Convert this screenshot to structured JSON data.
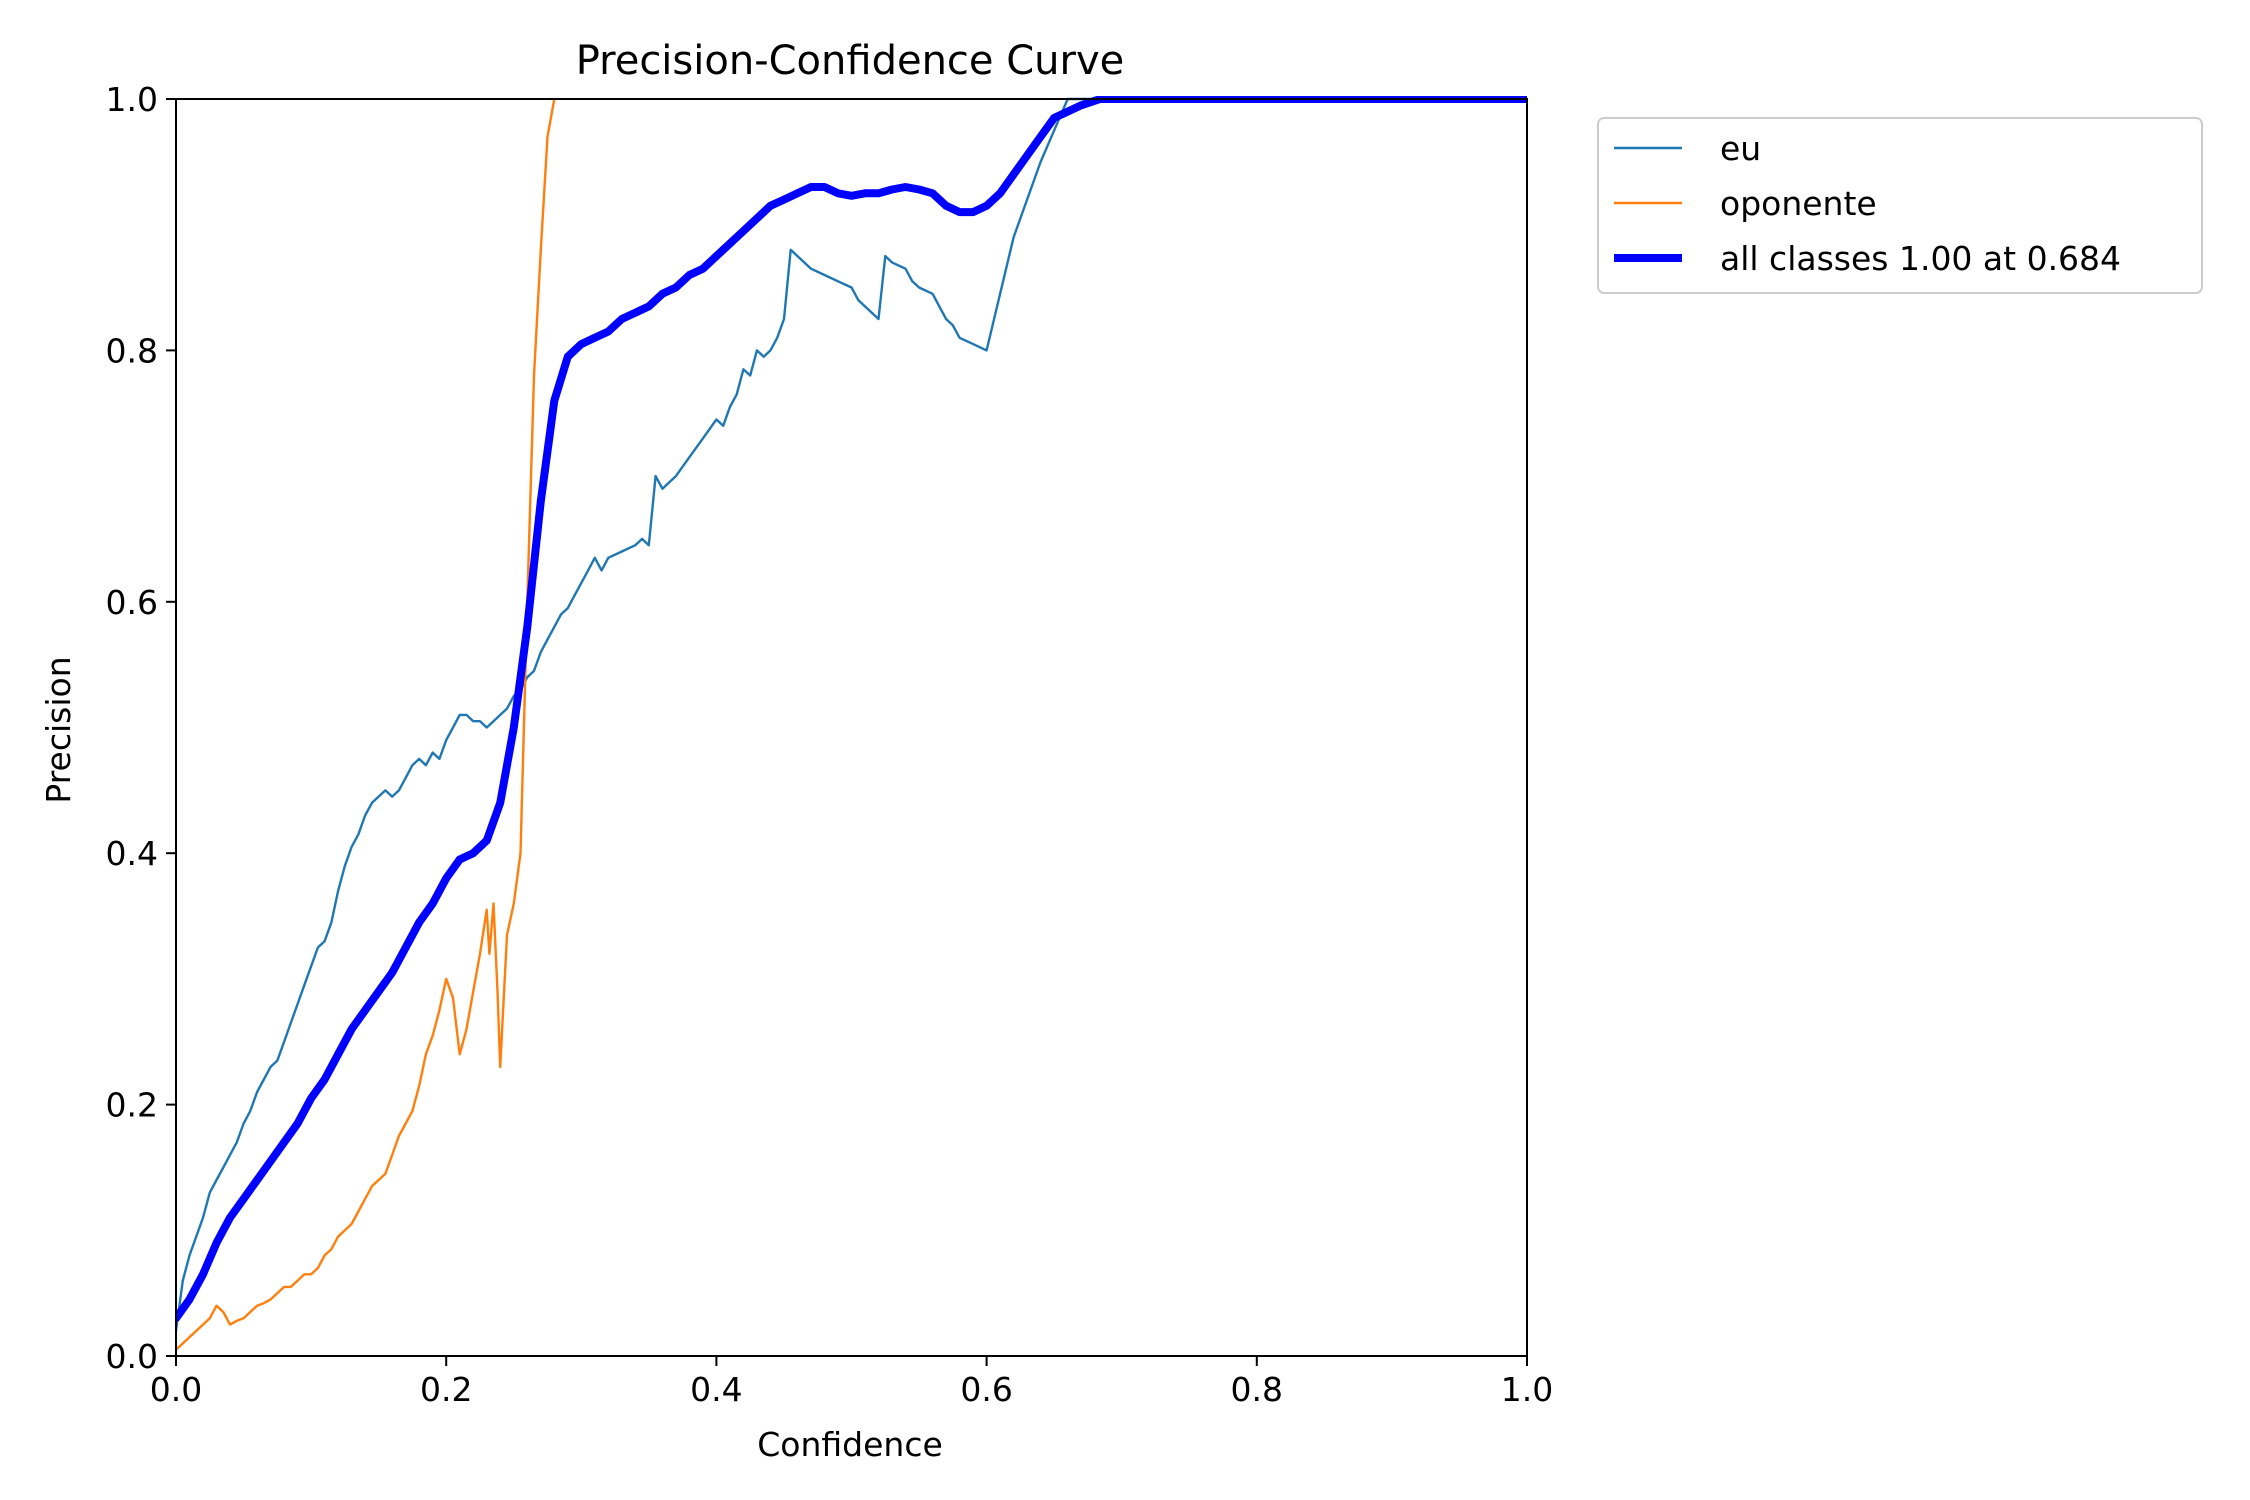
{
  "chart_data": {
    "type": "line",
    "title": "Precision-Confidence Curve",
    "xlabel": "Confidence",
    "ylabel": "Precision",
    "xlim": [
      0,
      1
    ],
    "ylim": [
      0,
      1
    ],
    "x_ticks": [
      "0.0",
      "0.2",
      "0.4",
      "0.6",
      "0.8",
      "1.0"
    ],
    "y_ticks": [
      "0.0",
      "0.2",
      "0.4",
      "0.6",
      "0.8",
      "1.0"
    ],
    "grid": false,
    "legend_position": "outside-top-right",
    "series": [
      {
        "name": "eu",
        "color": "#1f77b4",
        "style": "thin",
        "points": [
          [
            0.0,
            0.02
          ],
          [
            0.005,
            0.06
          ],
          [
            0.01,
            0.08
          ],
          [
            0.02,
            0.11
          ],
          [
            0.025,
            0.13
          ],
          [
            0.03,
            0.14
          ],
          [
            0.035,
            0.15
          ],
          [
            0.04,
            0.16
          ],
          [
            0.045,
            0.17
          ],
          [
            0.05,
            0.185
          ],
          [
            0.055,
            0.195
          ],
          [
            0.06,
            0.21
          ],
          [
            0.065,
            0.22
          ],
          [
            0.07,
            0.23
          ],
          [
            0.075,
            0.235
          ],
          [
            0.08,
            0.25
          ],
          [
            0.085,
            0.265
          ],
          [
            0.09,
            0.28
          ],
          [
            0.095,
            0.295
          ],
          [
            0.1,
            0.31
          ],
          [
            0.105,
            0.325
          ],
          [
            0.11,
            0.33
          ],
          [
            0.115,
            0.345
          ],
          [
            0.12,
            0.37
          ],
          [
            0.125,
            0.39
          ],
          [
            0.13,
            0.405
          ],
          [
            0.135,
            0.415
          ],
          [
            0.14,
            0.43
          ],
          [
            0.145,
            0.44
          ],
          [
            0.15,
            0.445
          ],
          [
            0.155,
            0.45
          ],
          [
            0.16,
            0.445
          ],
          [
            0.165,
            0.45
          ],
          [
            0.17,
            0.46
          ],
          [
            0.175,
            0.47
          ],
          [
            0.18,
            0.475
          ],
          [
            0.185,
            0.47
          ],
          [
            0.19,
            0.48
          ],
          [
            0.195,
            0.475
          ],
          [
            0.2,
            0.49
          ],
          [
            0.205,
            0.5
          ],
          [
            0.21,
            0.51
          ],
          [
            0.215,
            0.51
          ],
          [
            0.22,
            0.505
          ],
          [
            0.225,
            0.505
          ],
          [
            0.23,
            0.5
          ],
          [
            0.235,
            0.505
          ],
          [
            0.24,
            0.51
          ],
          [
            0.245,
            0.515
          ],
          [
            0.25,
            0.525
          ],
          [
            0.255,
            0.53
          ],
          [
            0.26,
            0.54
          ],
          [
            0.265,
            0.545
          ],
          [
            0.27,
            0.56
          ],
          [
            0.275,
            0.57
          ],
          [
            0.28,
            0.58
          ],
          [
            0.285,
            0.59
          ],
          [
            0.29,
            0.595
          ],
          [
            0.295,
            0.605
          ],
          [
            0.3,
            0.615
          ],
          [
            0.305,
            0.625
          ],
          [
            0.31,
            0.635
          ],
          [
            0.315,
            0.625
          ],
          [
            0.32,
            0.635
          ],
          [
            0.33,
            0.64
          ],
          [
            0.34,
            0.645
          ],
          [
            0.345,
            0.65
          ],
          [
            0.35,
            0.645
          ],
          [
            0.355,
            0.7
          ],
          [
            0.36,
            0.69
          ],
          [
            0.37,
            0.7
          ],
          [
            0.38,
            0.715
          ],
          [
            0.39,
            0.73
          ],
          [
            0.4,
            0.745
          ],
          [
            0.405,
            0.74
          ],
          [
            0.41,
            0.755
          ],
          [
            0.415,
            0.765
          ],
          [
            0.42,
            0.785
          ],
          [
            0.425,
            0.78
          ],
          [
            0.43,
            0.8
          ],
          [
            0.435,
            0.795
          ],
          [
            0.44,
            0.8
          ],
          [
            0.445,
            0.81
          ],
          [
            0.45,
            0.825
          ],
          [
            0.455,
            0.88
          ],
          [
            0.46,
            0.875
          ],
          [
            0.465,
            0.87
          ],
          [
            0.47,
            0.865
          ],
          [
            0.48,
            0.86
          ],
          [
            0.49,
            0.855
          ],
          [
            0.5,
            0.85
          ],
          [
            0.505,
            0.84
          ],
          [
            0.51,
            0.835
          ],
          [
            0.52,
            0.825
          ],
          [
            0.525,
            0.875
          ],
          [
            0.53,
            0.87
          ],
          [
            0.54,
            0.865
          ],
          [
            0.545,
            0.855
          ],
          [
            0.55,
            0.85
          ],
          [
            0.56,
            0.845
          ],
          [
            0.565,
            0.835
          ],
          [
            0.57,
            0.825
          ],
          [
            0.575,
            0.82
          ],
          [
            0.58,
            0.81
          ],
          [
            0.59,
            0.805
          ],
          [
            0.6,
            0.8
          ],
          [
            0.62,
            0.89
          ],
          [
            0.64,
            0.95
          ],
          [
            0.66,
            1.0
          ],
          [
            0.68,
            1.0
          ],
          [
            1.0,
            1.0
          ]
        ]
      },
      {
        "name": "oponente",
        "color": "#ff7f0e",
        "style": "thin",
        "points": [
          [
            0.0,
            0.005
          ],
          [
            0.005,
            0.01
          ],
          [
            0.01,
            0.015
          ],
          [
            0.015,
            0.02
          ],
          [
            0.02,
            0.025
          ],
          [
            0.025,
            0.03
          ],
          [
            0.03,
            0.04
          ],
          [
            0.035,
            0.035
          ],
          [
            0.04,
            0.025
          ],
          [
            0.045,
            0.028
          ],
          [
            0.05,
            0.03
          ],
          [
            0.055,
            0.035
          ],
          [
            0.06,
            0.04
          ],
          [
            0.065,
            0.042
          ],
          [
            0.07,
            0.045
          ],
          [
            0.075,
            0.05
          ],
          [
            0.08,
            0.055
          ],
          [
            0.085,
            0.055
          ],
          [
            0.09,
            0.06
          ],
          [
            0.095,
            0.065
          ],
          [
            0.1,
            0.065
          ],
          [
            0.105,
            0.07
          ],
          [
            0.11,
            0.08
          ],
          [
            0.115,
            0.085
          ],
          [
            0.12,
            0.095
          ],
          [
            0.125,
            0.1
          ],
          [
            0.13,
            0.105
          ],
          [
            0.135,
            0.115
          ],
          [
            0.14,
            0.125
          ],
          [
            0.145,
            0.135
          ],
          [
            0.15,
            0.14
          ],
          [
            0.155,
            0.145
          ],
          [
            0.16,
            0.16
          ],
          [
            0.165,
            0.175
          ],
          [
            0.17,
            0.185
          ],
          [
            0.175,
            0.195
          ],
          [
            0.18,
            0.215
          ],
          [
            0.185,
            0.24
          ],
          [
            0.19,
            0.255
          ],
          [
            0.195,
            0.275
          ],
          [
            0.2,
            0.3
          ],
          [
            0.205,
            0.285
          ],
          [
            0.21,
            0.24
          ],
          [
            0.215,
            0.26
          ],
          [
            0.22,
            0.29
          ],
          [
            0.225,
            0.32
          ],
          [
            0.23,
            0.355
          ],
          [
            0.232,
            0.32
          ],
          [
            0.235,
            0.36
          ],
          [
            0.238,
            0.29
          ],
          [
            0.24,
            0.23
          ],
          [
            0.245,
            0.335
          ],
          [
            0.25,
            0.36
          ],
          [
            0.255,
            0.4
          ],
          [
            0.26,
            0.6
          ],
          [
            0.265,
            0.78
          ],
          [
            0.27,
            0.88
          ],
          [
            0.275,
            0.97
          ],
          [
            0.28,
            1.0
          ]
        ]
      },
      {
        "name": "all classes 1.00 at 0.684",
        "color": "#0000ff",
        "style": "thick",
        "points": [
          [
            0.0,
            0.03
          ],
          [
            0.01,
            0.045
          ],
          [
            0.02,
            0.065
          ],
          [
            0.03,
            0.09
          ],
          [
            0.04,
            0.11
          ],
          [
            0.05,
            0.125
          ],
          [
            0.06,
            0.14
          ],
          [
            0.07,
            0.155
          ],
          [
            0.08,
            0.17
          ],
          [
            0.09,
            0.185
          ],
          [
            0.1,
            0.205
          ],
          [
            0.11,
            0.22
          ],
          [
            0.12,
            0.24
          ],
          [
            0.13,
            0.26
          ],
          [
            0.14,
            0.275
          ],
          [
            0.15,
            0.29
          ],
          [
            0.16,
            0.305
          ],
          [
            0.17,
            0.325
          ],
          [
            0.18,
            0.345
          ],
          [
            0.19,
            0.36
          ],
          [
            0.2,
            0.38
          ],
          [
            0.21,
            0.395
          ],
          [
            0.22,
            0.4
          ],
          [
            0.23,
            0.41
          ],
          [
            0.24,
            0.44
          ],
          [
            0.25,
            0.5
          ],
          [
            0.26,
            0.58
          ],
          [
            0.27,
            0.68
          ],
          [
            0.28,
            0.76
          ],
          [
            0.29,
            0.795
          ],
          [
            0.3,
            0.805
          ],
          [
            0.31,
            0.81
          ],
          [
            0.32,
            0.815
          ],
          [
            0.33,
            0.825
          ],
          [
            0.34,
            0.83
          ],
          [
            0.35,
            0.835
          ],
          [
            0.36,
            0.845
          ],
          [
            0.37,
            0.85
          ],
          [
            0.38,
            0.86
          ],
          [
            0.39,
            0.865
          ],
          [
            0.4,
            0.875
          ],
          [
            0.41,
            0.885
          ],
          [
            0.42,
            0.895
          ],
          [
            0.43,
            0.905
          ],
          [
            0.44,
            0.915
          ],
          [
            0.45,
            0.92
          ],
          [
            0.46,
            0.925
          ],
          [
            0.47,
            0.93
          ],
          [
            0.48,
            0.93
          ],
          [
            0.49,
            0.925
          ],
          [
            0.5,
            0.923
          ],
          [
            0.51,
            0.925
          ],
          [
            0.52,
            0.925
          ],
          [
            0.53,
            0.928
          ],
          [
            0.54,
            0.93
          ],
          [
            0.55,
            0.928
          ],
          [
            0.56,
            0.925
          ],
          [
            0.57,
            0.915
          ],
          [
            0.58,
            0.91
          ],
          [
            0.59,
            0.91
          ],
          [
            0.6,
            0.915
          ],
          [
            0.61,
            0.925
          ],
          [
            0.62,
            0.94
          ],
          [
            0.63,
            0.955
          ],
          [
            0.64,
            0.97
          ],
          [
            0.65,
            0.985
          ],
          [
            0.66,
            0.99
          ],
          [
            0.67,
            0.995
          ],
          [
            0.684,
            1.0
          ],
          [
            0.7,
            1.0
          ],
          [
            1.0,
            1.0
          ]
        ]
      }
    ]
  }
}
